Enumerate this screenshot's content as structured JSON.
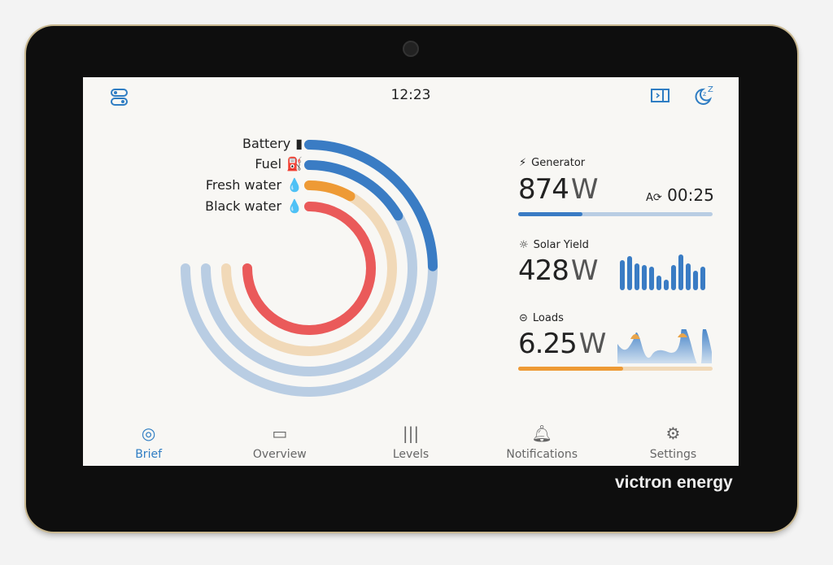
{
  "header": {
    "time": "12:23",
    "left_icon": "toggles-icon",
    "right_icons": [
      "sidebar-panel-icon",
      "sleep-moon-icon"
    ]
  },
  "gauges": [
    {
      "label": "Battery",
      "icon": "battery-icon",
      "level_percent": 33,
      "color": "#3a7cc4",
      "track": "#b9cde3"
    },
    {
      "label": "Fuel",
      "icon": "fuel-pump-icon",
      "level_percent": 22,
      "color": "#3a7cc4",
      "track": "#b9cde3"
    },
    {
      "label": "Fresh water",
      "icon": "water-drop-icon",
      "level_percent": 11,
      "color": "#ee9a35",
      "track": "#f1d9b8"
    },
    {
      "label": "Black water",
      "icon": "black-water-drop-icon",
      "level_percent": 100,
      "color": "#ea5a5a",
      "track": "#f2c0c0"
    }
  ],
  "generator": {
    "title": "Generator",
    "value": "874",
    "unit": "W",
    "runtime": "00:25",
    "level_percent": 33
  },
  "solar": {
    "title": "Solar Yield",
    "value": "428",
    "unit": "W",
    "bars": [
      0.85,
      0.95,
      0.75,
      0.7,
      0.65,
      0.4,
      0.3,
      0.7,
      1.0,
      0.75,
      0.55,
      0.65
    ]
  },
  "loads": {
    "title": "Loads",
    "value": "6.25",
    "unit": "W",
    "level_percent": 54
  },
  "nav": [
    {
      "label": "Brief",
      "active": true
    },
    {
      "label": "Overview"
    },
    {
      "label": "Levels"
    },
    {
      "label": "Notifications"
    },
    {
      "label": "Settings"
    }
  ],
  "brand": "victron energy"
}
